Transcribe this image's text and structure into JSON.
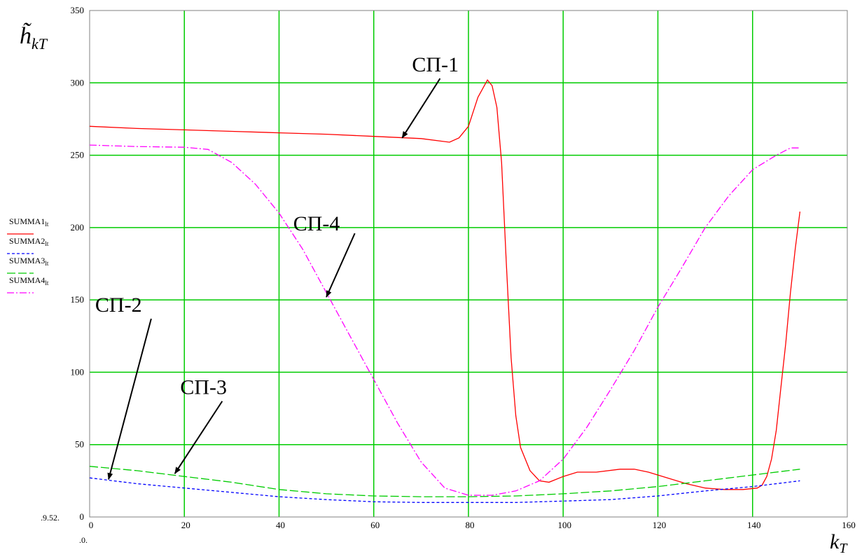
{
  "chart_data": {
    "type": "line",
    "title": "",
    "ylabel": {
      "main": "h̃",
      "sub": "kT",
      "tilde": true
    },
    "xlabel": {
      "main": "k",
      "sub": "T"
    },
    "xlim": [
      0,
      160
    ],
    "ylim": [
      0,
      350
    ],
    "x_ticks": [
      "0",
      "20",
      "40",
      "60",
      "80",
      "100",
      "120",
      "140",
      "160"
    ],
    "y_ticks": [
      "0",
      "50",
      "100",
      "150",
      "200",
      "250",
      "300",
      "350"
    ],
    "corner_labels": {
      "y_min": "9.52",
      "x_min": "0"
    },
    "grid": true,
    "grid_color": "#00cc00",
    "legend_placement": "left",
    "series": [
      {
        "name": "SUMMA1",
        "name_sub": "lt",
        "color": "#ff0000",
        "dash": "",
        "points": [
          [
            0,
            270
          ],
          [
            10,
            268.5
          ],
          [
            20,
            267.5
          ],
          [
            30,
            266.5
          ],
          [
            40,
            265.5
          ],
          [
            50,
            264.5
          ],
          [
            60,
            263
          ],
          [
            70,
            261.5
          ],
          [
            76,
            259
          ],
          [
            78,
            262
          ],
          [
            80,
            270
          ],
          [
            82,
            290
          ],
          [
            84,
            302
          ],
          [
            85,
            298
          ],
          [
            86,
            283
          ],
          [
            87,
            245
          ],
          [
            88,
            175
          ],
          [
            89,
            110
          ],
          [
            90,
            70
          ],
          [
            91,
            48
          ],
          [
            93,
            32
          ],
          [
            95,
            25
          ],
          [
            97,
            24
          ],
          [
            100,
            28
          ],
          [
            103,
            31
          ],
          [
            107,
            31
          ],
          [
            112,
            33
          ],
          [
            115,
            33
          ],
          [
            118,
            31
          ],
          [
            122,
            27
          ],
          [
            126,
            23
          ],
          [
            130,
            20
          ],
          [
            134,
            19
          ],
          [
            138,
            19
          ],
          [
            141,
            20
          ],
          [
            142,
            22
          ],
          [
            143,
            28
          ],
          [
            144,
            40
          ],
          [
            145,
            60
          ],
          [
            146,
            90
          ],
          [
            147,
            120
          ],
          [
            148,
            155
          ],
          [
            149,
            185
          ],
          [
            150,
            211
          ]
        ]
      },
      {
        "name": "SUMMA2",
        "name_sub": "lt",
        "color": "#0000ff",
        "dash": "4,3",
        "points": [
          [
            0,
            27
          ],
          [
            10,
            23
          ],
          [
            20,
            20
          ],
          [
            30,
            17
          ],
          [
            40,
            14
          ],
          [
            50,
            12
          ],
          [
            60,
            10.5
          ],
          [
            70,
            10
          ],
          [
            80,
            10
          ],
          [
            90,
            10
          ],
          [
            100,
            11
          ],
          [
            110,
            12
          ],
          [
            120,
            14.5
          ],
          [
            130,
            18
          ],
          [
            140,
            21
          ],
          [
            150,
            25
          ]
        ]
      },
      {
        "name": "SUMMA3",
        "name_sub": "lt",
        "color": "#00cc00",
        "dash": "12,4",
        "points": [
          [
            0,
            35
          ],
          [
            10,
            32
          ],
          [
            20,
            28
          ],
          [
            30,
            24
          ],
          [
            40,
            19
          ],
          [
            50,
            16
          ],
          [
            60,
            14.5
          ],
          [
            70,
            14
          ],
          [
            80,
            14
          ],
          [
            90,
            14.5
          ],
          [
            100,
            16
          ],
          [
            110,
            18
          ],
          [
            120,
            21
          ],
          [
            130,
            25
          ],
          [
            140,
            29
          ],
          [
            150,
            33
          ]
        ]
      },
      {
        "name": "SUMMA4",
        "name_sub": "lt",
        "color": "#ff00ff",
        "dash": "10,3,2,3",
        "points": [
          [
            0,
            257
          ],
          [
            10,
            256
          ],
          [
            20,
            255.5
          ],
          [
            25,
            254
          ],
          [
            30,
            245
          ],
          [
            35,
            230
          ],
          [
            40,
            210
          ],
          [
            45,
            185
          ],
          [
            50,
            155
          ],
          [
            55,
            125
          ],
          [
            60,
            95
          ],
          [
            65,
            65
          ],
          [
            70,
            38
          ],
          [
            75,
            20
          ],
          [
            80,
            15
          ],
          [
            85,
            15
          ],
          [
            90,
            18
          ],
          [
            95,
            25
          ],
          [
            100,
            40
          ],
          [
            105,
            62
          ],
          [
            110,
            88
          ],
          [
            115,
            115
          ],
          [
            120,
            145
          ],
          [
            125,
            172
          ],
          [
            130,
            200
          ],
          [
            135,
            222
          ],
          [
            140,
            240
          ],
          [
            145,
            250
          ],
          [
            148,
            255
          ],
          [
            150,
            255
          ]
        ]
      }
    ],
    "annotations": [
      {
        "text": "СП-1",
        "target": [
          66,
          262
        ],
        "label_at": [
          74,
          303
        ]
      },
      {
        "text": "СП-2",
        "target": [
          4,
          26
        ],
        "label_at": [
          13,
          137
        ]
      },
      {
        "text": "СП-3",
        "target": [
          18,
          30
        ],
        "label_at": [
          28,
          80
        ]
      },
      {
        "text": "СП-4",
        "target": [
          50,
          152
        ],
        "label_at": [
          56,
          196
        ]
      }
    ]
  }
}
